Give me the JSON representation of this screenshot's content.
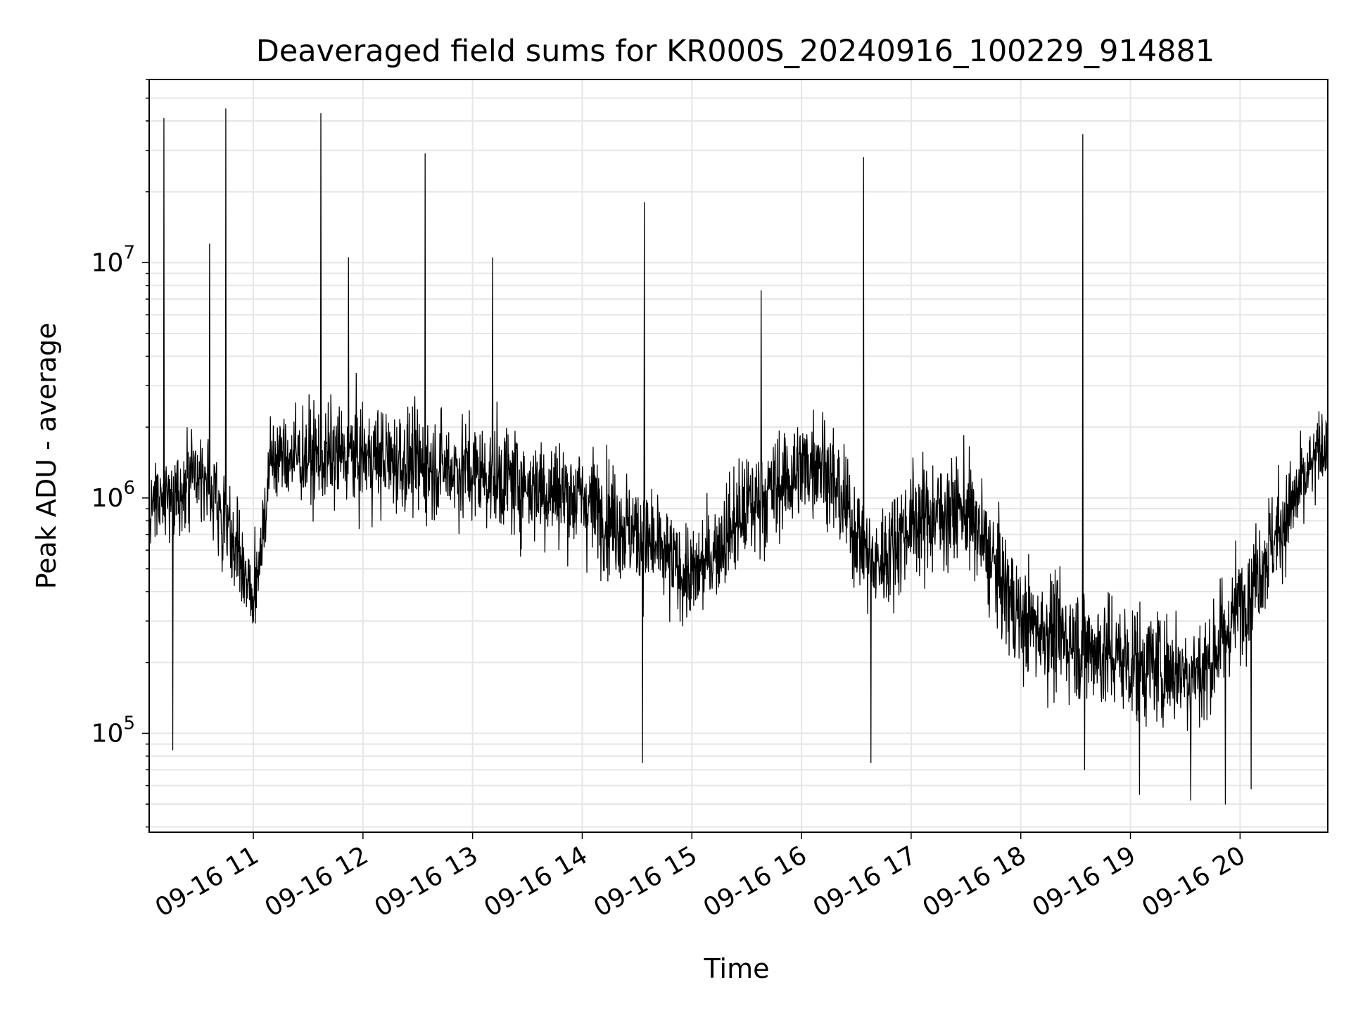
{
  "chart_data": {
    "type": "line",
    "title": "Deaveraged field sums for KR000S_20240916_100229_914881",
    "xlabel": "Time",
    "ylabel": "Peak ADU - average",
    "yscale": "log",
    "ylim": [
      38000,
      60000000
    ],
    "xlim": [
      "2024-09-16 10:03",
      "2024-09-16 20:48"
    ],
    "x_ticks": [
      "09-16 11",
      "09-16 12",
      "09-16 13",
      "09-16 14",
      "09-16 15",
      "09-16 16",
      "09-16 17",
      "09-16 18",
      "09-16 19",
      "09-16 20"
    ],
    "y_ticks": [
      {
        "base": "10",
        "exp": "5",
        "value": 100000
      },
      {
        "base": "10",
        "exp": "6",
        "value": 1000000
      },
      {
        "base": "10",
        "exp": "7",
        "value": 10000000
      }
    ],
    "grid": true,
    "line_color": "#000000",
    "envelope": [
      {
        "t": "2024-09-16 10:03",
        "median": 900000,
        "spread": 2.0
      },
      {
        "t": "2024-09-16 10:30",
        "median": 1300000,
        "spread": 2.0
      },
      {
        "t": "2024-09-16 10:50",
        "median": 700000,
        "spread": 2.3
      },
      {
        "t": "2024-09-16 11:00",
        "median": 350000,
        "spread": 1.8
      },
      {
        "t": "2024-09-16 11:10",
        "median": 1500000,
        "spread": 2.0
      },
      {
        "t": "2024-09-16 12:00",
        "median": 1500000,
        "spread": 2.2
      },
      {
        "t": "2024-09-16 13:00",
        "median": 1300000,
        "spread": 2.2
      },
      {
        "t": "2024-09-16 14:00",
        "median": 1000000,
        "spread": 2.3
      },
      {
        "t": "2024-09-16 14:30",
        "median": 700000,
        "spread": 2.3
      },
      {
        "t": "2024-09-16 15:00",
        "median": 450000,
        "spread": 2.0
      },
      {
        "t": "2024-09-16 15:30",
        "median": 900000,
        "spread": 2.3
      },
      {
        "t": "2024-09-16 16:10",
        "median": 1500000,
        "spread": 2.2
      },
      {
        "t": "2024-09-16 16:40",
        "median": 500000,
        "spread": 2.2
      },
      {
        "t": "2024-09-16 17:00",
        "median": 800000,
        "spread": 2.3
      },
      {
        "t": "2024-09-16 17:30",
        "median": 900000,
        "spread": 2.3
      },
      {
        "t": "2024-09-16 18:00",
        "median": 300000,
        "spread": 2.3
      },
      {
        "t": "2024-09-16 19:00",
        "median": 200000,
        "spread": 2.5
      },
      {
        "t": "2024-09-16 19:40",
        "median": 180000,
        "spread": 2.4
      },
      {
        "t": "2024-09-16 20:20",
        "median": 700000,
        "spread": 2.2
      },
      {
        "t": "2024-09-16 20:48",
        "median": 1800000,
        "spread": 1.8
      }
    ],
    "spikes": [
      {
        "t": "2024-09-16 10:11",
        "value": 41000000
      },
      {
        "t": "2024-09-16 10:36",
        "value": 12000000
      },
      {
        "t": "2024-09-16 10:45",
        "value": 45000000
      },
      {
        "t": "2024-09-16 11:37",
        "value": 43000000
      },
      {
        "t": "2024-09-16 11:52",
        "value": 10500000
      },
      {
        "t": "2024-09-16 12:34",
        "value": 29000000
      },
      {
        "t": "2024-09-16 13:11",
        "value": 10500000
      },
      {
        "t": "2024-09-16 14:34",
        "value": 18000000
      },
      {
        "t": "2024-09-16 15:38",
        "value": 7600000
      },
      {
        "t": "2024-09-16 16:34",
        "value": 28000000
      },
      {
        "t": "2024-09-16 18:34",
        "value": 35000000
      }
    ],
    "dips": [
      {
        "t": "2024-09-16 10:16",
        "value": 85000
      },
      {
        "t": "2024-09-16 14:33",
        "value": 75000
      },
      {
        "t": "2024-09-16 16:38",
        "value": 75000
      },
      {
        "t": "2024-09-16 18:35",
        "value": 70000
      },
      {
        "t": "2024-09-16 19:05",
        "value": 55000
      },
      {
        "t": "2024-09-16 19:33",
        "value": 52000
      },
      {
        "t": "2024-09-16 19:52",
        "value": 50000
      },
      {
        "t": "2024-09-16 20:06",
        "value": 58000
      }
    ]
  }
}
